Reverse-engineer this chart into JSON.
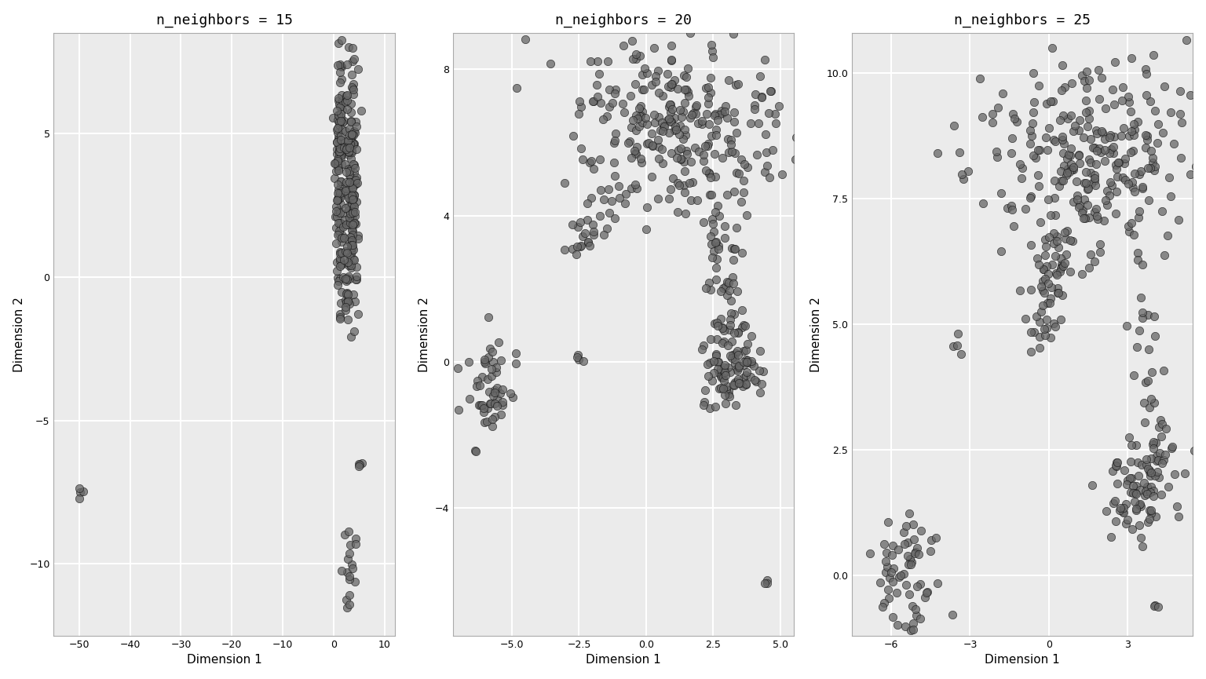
{
  "titles": [
    "n_neighbors = 15",
    "n_neighbors = 20",
    "n_neighbors = 25"
  ],
  "xlabel": "Dimension 1",
  "ylabel": "Dimension 2",
  "background_color": "#ffffff",
  "panel_bg": "#ebebeb",
  "grid_color": "#ffffff",
  "marker_facecolor": "#666666",
  "marker_edge_color": "#111111",
  "marker_size": 55,
  "marker_alpha": 0.75,
  "marker_lw": 0.5,
  "title_fontsize": 13,
  "axis_label_fontsize": 11,
  "tick_fontsize": 9,
  "plots": [
    {
      "xlim": [
        -55,
        12
      ],
      "ylim": [
        -12.5,
        8.5
      ],
      "xticks": [
        -50,
        -40,
        -30,
        -20,
        -10,
        0,
        10
      ],
      "yticks": [
        -10,
        -5,
        0,
        5
      ]
    },
    {
      "xlim": [
        -7.2,
        5.5
      ],
      "ylim": [
        -7.5,
        9.0
      ],
      "xticks": [
        -5.0,
        -2.5,
        0.0,
        2.5,
        5.0
      ],
      "yticks": [
        -4,
        0,
        4,
        8
      ]
    },
    {
      "xlim": [
        -7.5,
        5.5
      ],
      "ylim": [
        -1.2,
        10.8
      ],
      "xticks": [
        -6,
        -3,
        0,
        3
      ],
      "yticks": [
        0.0,
        2.5,
        5.0,
        7.5,
        10.0
      ]
    }
  ]
}
